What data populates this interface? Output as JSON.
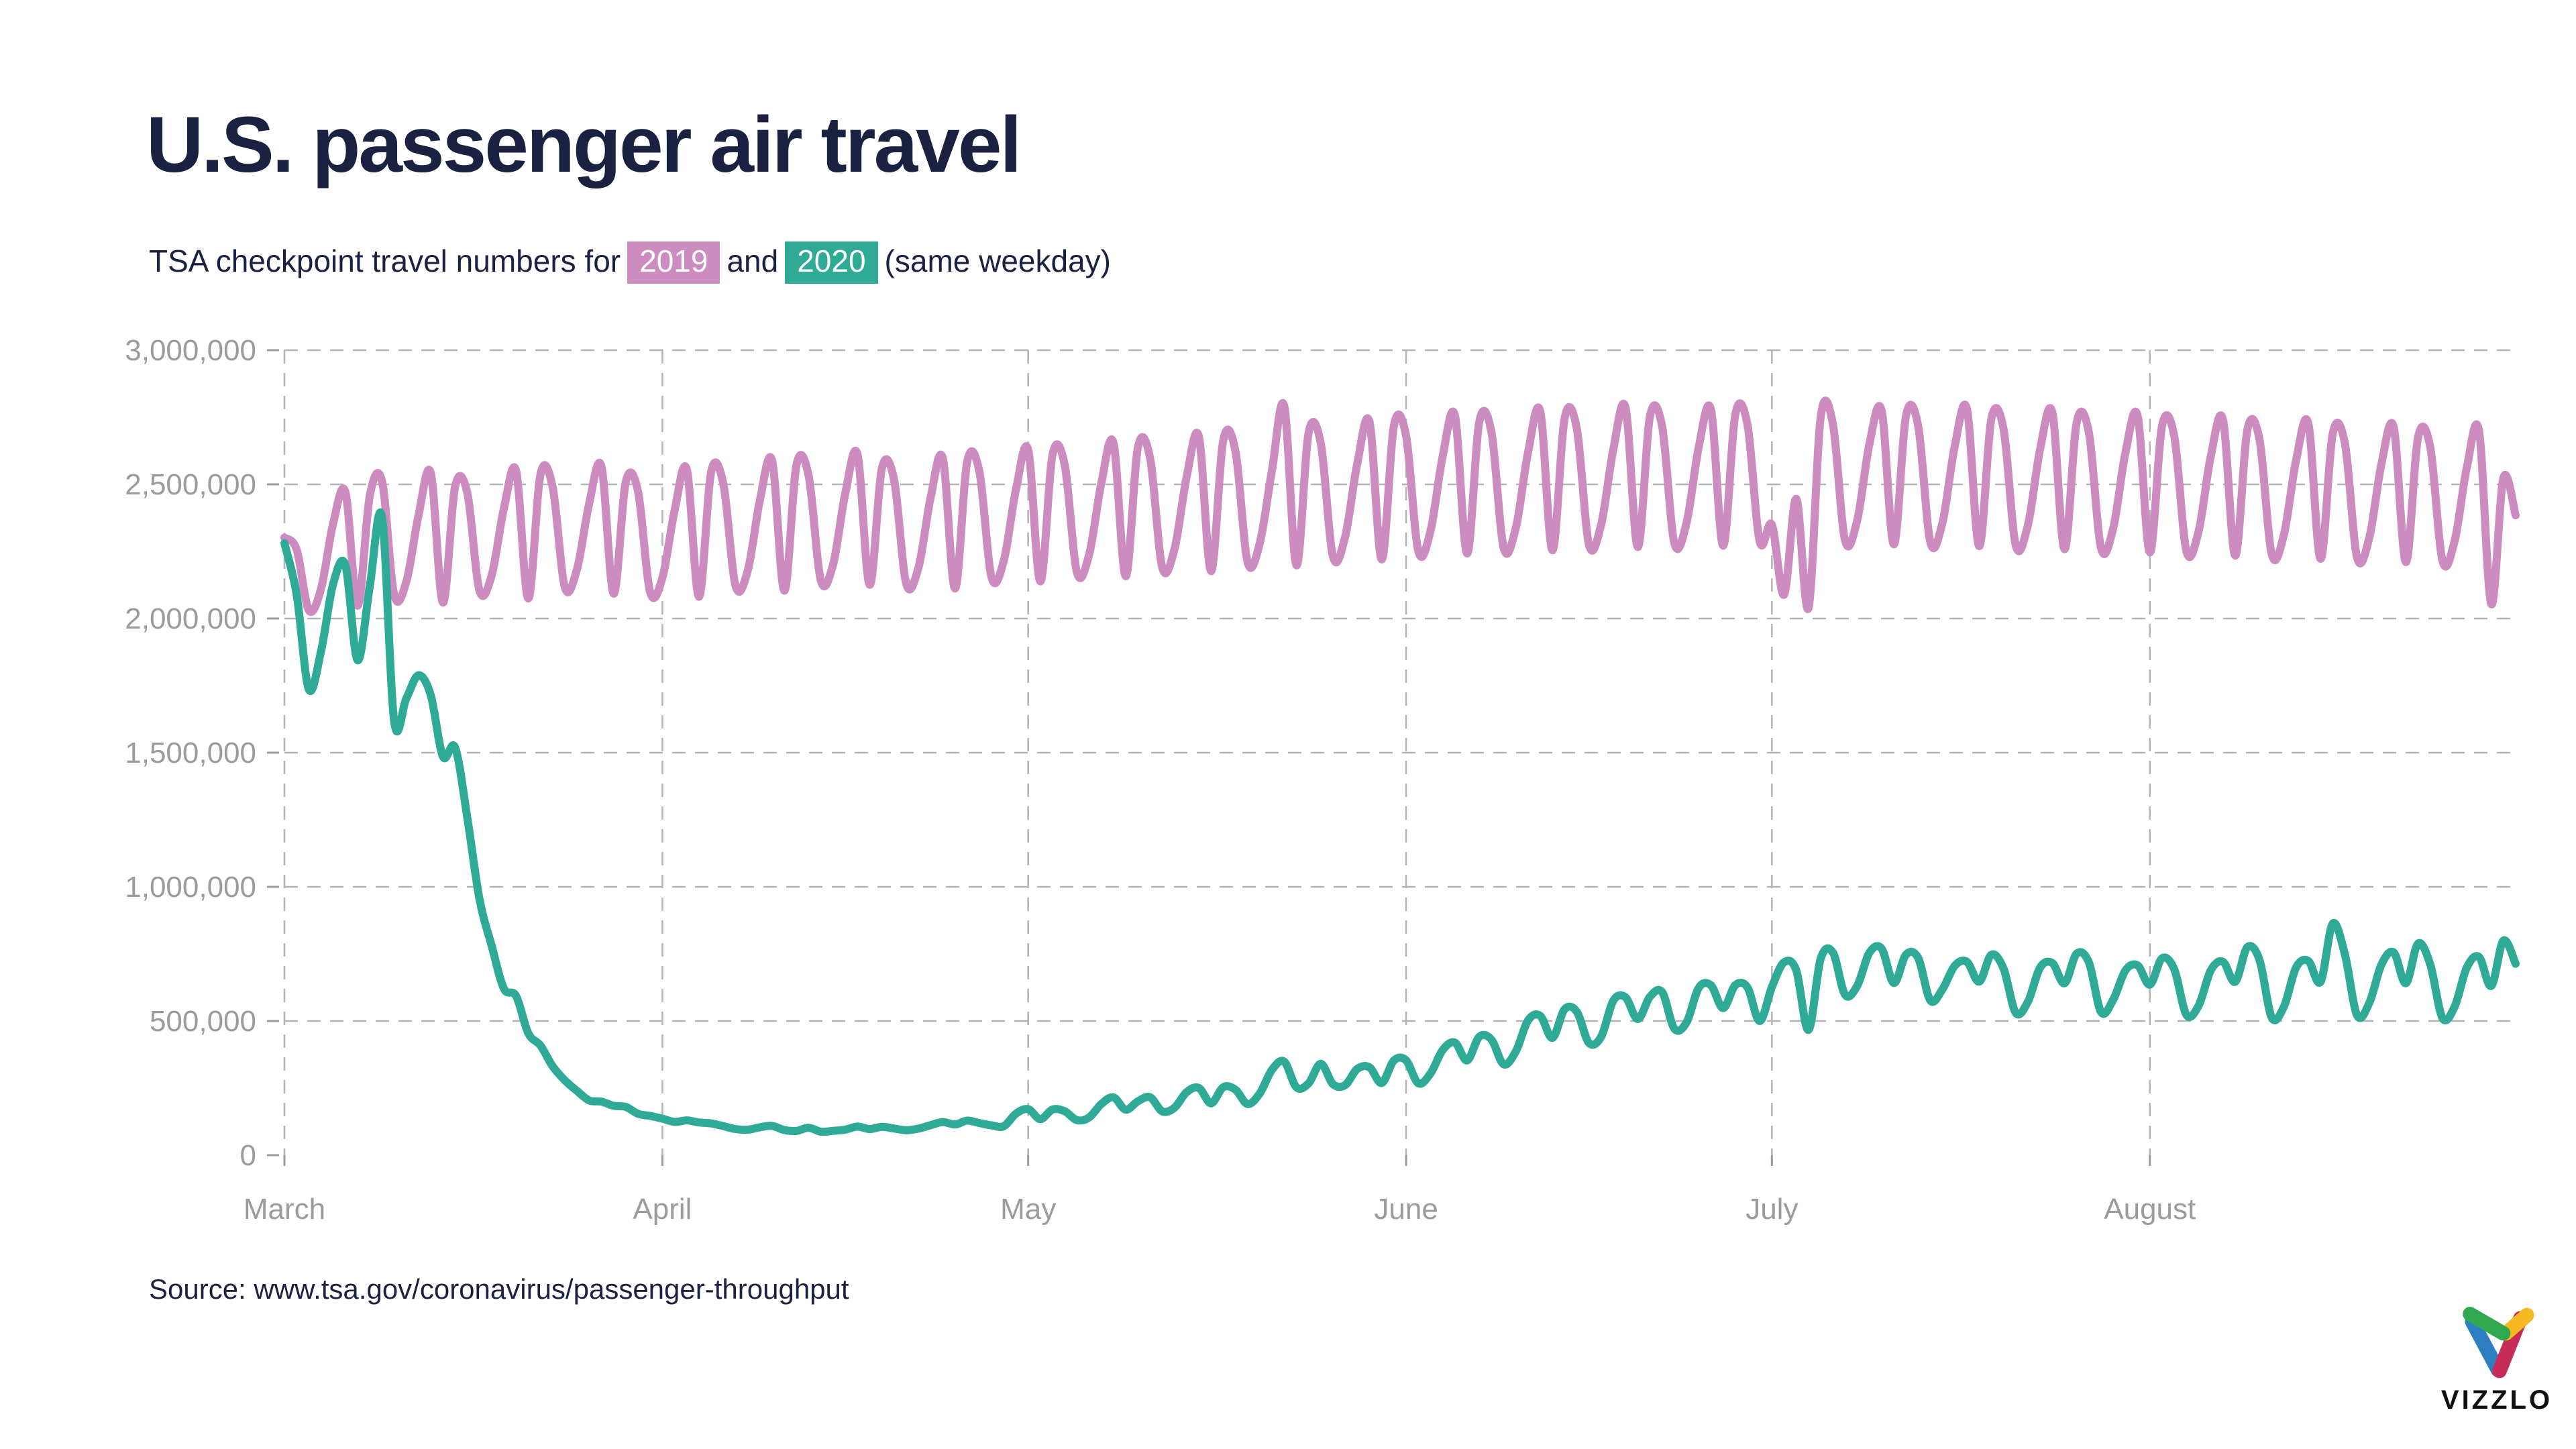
{
  "header": {
    "title": "U.S. passenger air travel",
    "subtitle_prefix": "TSA checkpoint travel numbers for",
    "and_text": "and",
    "subtitle_suffix": "(same weekday)"
  },
  "footer": {
    "source": "Source: www.tsa.gov/coronavirus/passenger-throughput",
    "brand": "VIZZLO"
  },
  "colors": {
    "title_navy": "#1b2140",
    "axis_gray": "#9b9b9b",
    "grid_gray": "#b4b4b4",
    "series_2019_pink": "#cd8cbf",
    "series_2020_teal": "#2faa97",
    "logo_green": "#2fa84f",
    "logo_yellow": "#f6b921",
    "logo_blue": "#2e7fc2",
    "logo_red": "#c62c57"
  },
  "chart_data": {
    "type": "line",
    "title": "U.S. passenger air travel",
    "subtitle": "TSA checkpoint travel numbers for 2019 and 2020 (same weekday)",
    "x_unit": "day",
    "x_range": [
      "March 1",
      "August 31"
    ],
    "ylim": [
      0,
      3000000
    ],
    "grid": "dashed",
    "legend": "inline subtitle chips",
    "months": [
      {
        "label": "March",
        "day": 0
      },
      {
        "label": "April",
        "day": 31
      },
      {
        "label": "May",
        "day": 61
      },
      {
        "label": "June",
        "day": 92
      },
      {
        "label": "July",
        "day": 122
      },
      {
        "label": "August",
        "day": 153
      }
    ],
    "y_ticks": [
      {
        "value": 0,
        "label": "0"
      },
      {
        "value": 500000,
        "label": "500,000"
      },
      {
        "value": 1000000,
        "label": "1,000,000"
      },
      {
        "value": 1500000,
        "label": "1,500,000"
      },
      {
        "value": 2000000,
        "label": "2,000,000"
      },
      {
        "value": 2500000,
        "label": "2,500,000"
      },
      {
        "value": 3000000,
        "label": "3,000,000"
      }
    ],
    "series": [
      {
        "name": "2019",
        "color": "#cd8cbf",
        "values": [
          2301439,
          2257033,
          2030941,
          2110256,
          2355387,
          2470668,
          2047722,
          2456921,
          2512237,
          2088760,
          2137381,
          2384780,
          2542643,
          2059622,
          2491745,
          2467629,
          2103863,
          2161246,
          2409977,
          2550459,
          2074734,
          2537534,
          2489892,
          2115959,
          2184712,
          2430091,
          2566517,
          2092773,
          2509856,
          2473713,
          2097677,
          2151735,
          2402409,
          2555578,
          2081087,
          2546527,
          2501709,
          2121679,
          2177929,
          2441643,
          2588271,
          2103811,
          2572612,
          2530577,
          2140968,
          2201586,
          2465576,
          2611823,
          2125679,
          2558999,
          2517630,
          2129657,
          2189571,
          2450799,
          2597590,
          2111844,
          2584585,
          2546729,
          2152667,
          2215526,
          2480818,
          2628559,
          2138546,
          2610687,
          2571564,
          2171724,
          2237666,
          2503924,
          2653626,
          2157731,
          2636928,
          2597580,
          2189645,
          2258855,
          2527653,
          2678548,
          2176756,
          2663648,
          2624513,
          2209612,
          2281611,
          2553561,
          2792670,
          2198547,
          2691623,
          2652521,
          2230557,
          2304778,
          2579616,
          2731717,
          2220554,
          2718620,
          2679538,
          2250638,
          2326801,
          2605568,
          2756619,
          2242565,
          2732527,
          2693617,
          2262631,
          2338768,
          2618537,
          2771641,
          2254577,
          2746616,
          2707525,
          2274557,
          2350618,
          2632549,
          2785721,
          2266541,
          2753577,
          2714521,
          2280658,
          2356638,
          2638531,
          2778547,
          2271581,
          2760591,
          2721537,
          2286629,
          2349527,
          2088760,
          2445681,
          2039107,
          2748718,
          2725631,
          2290588,
          2366718,
          2650618,
          2774588,
          2276531,
          2755542,
          2717622,
          2283691,
          2359588,
          2643677,
          2780557,
          2269627,
          2743627,
          2705541,
          2272633,
          2348541,
          2631557,
          2767641,
          2258537,
          2730637,
          2692551,
          2261629,
          2337551,
          2618637,
          2754541,
          2246627,
          2717541,
          2679627,
          2250551,
          2325637,
          2605541,
          2740627,
          2234551,
          2703627,
          2665541,
          2238637,
          2313551,
          2591627,
          2726541,
          2222637,
          2689541,
          2651627,
          2226551,
          2301637,
          2577541,
          2712627,
          2210551,
          2675637,
          2637541,
          2214627,
          2289551,
          2563637,
          2698541,
          2053627,
          2524551,
          2384637
        ]
      },
      {
        "name": "2020",
        "color": "#2faa97",
        "values": [
          2280522,
          2089641,
          1736393,
          1877401,
          2130015,
          2198517,
          1844811,
          2119867,
          2378673,
          1617220,
          1702686,
          1788456,
          1714372,
          1485553,
          1519192,
          1257823,
          953699,
          779631,
          620883,
          593167,
          454516,
          408389,
          331431,
          279018,
          239234,
          203858,
          199644,
          184027,
          180002,
          154080,
          146348,
          136023,
          124021,
          129763,
          122029,
          118302,
          108310,
          97130,
          94931,
          104090,
          108977,
          93645,
          90510,
          102184,
          87534,
          90784,
          95085,
          106385,
          97236,
          105382,
          99344,
          92859,
          98968,
          111627,
          123464,
          114459,
          128875,
          119629,
          110913,
          107936,
          154695,
          171563,
          134261,
          170254,
          163692,
          130601,
          140409,
          190863,
          215444,
          169580,
          200815,
          215645,
          163205,
          176667,
          234928,
          250467,
          193340,
          253190,
          244176,
          190477,
          230367,
          318449,
          348673,
          253046,
          267451,
          340769,
          264843,
          261170,
          321776,
          327133,
          268867,
          352947,
          353261,
          267742,
          304436,
          391882,
          419675,
          353016,
          441255,
          430414,
          338382,
          386969,
          502209,
          519304,
          437119,
          544046,
          534528,
          417924,
          441829,
          576514,
          587908,
          507129,
          590456,
          607540,
          471421,
          494826,
          623624,
          632984,
          547889,
          633810,
          625235,
          500054,
          626516,
          718988,
          688508,
          466669,
          732123,
          755555,
          597699,
          631618,
          754545,
          769674,
          641761,
          747422,
          734816,
          576151,
          618958,
          706164,
          720378,
          646654,
          747083,
          695330,
          530421,
          571887,
          699126,
          715928,
          640714,
          751205,
          718310,
          532877,
          579983,
          688818,
          707183,
          635312,
          733634,
          692943,
          522874,
          557235,
          688943,
          720734,
          646248,
          775382,
          726510,
          512836,
          554046,
          700235,
          723811,
          645987,
          862949,
          747339,
          520693,
          567604,
          711178,
          755586,
          640932,
          788760,
          710146,
          510872,
          553810,
          699644,
          738775,
          630782,
          799861,
          713340
        ]
      }
    ]
  }
}
